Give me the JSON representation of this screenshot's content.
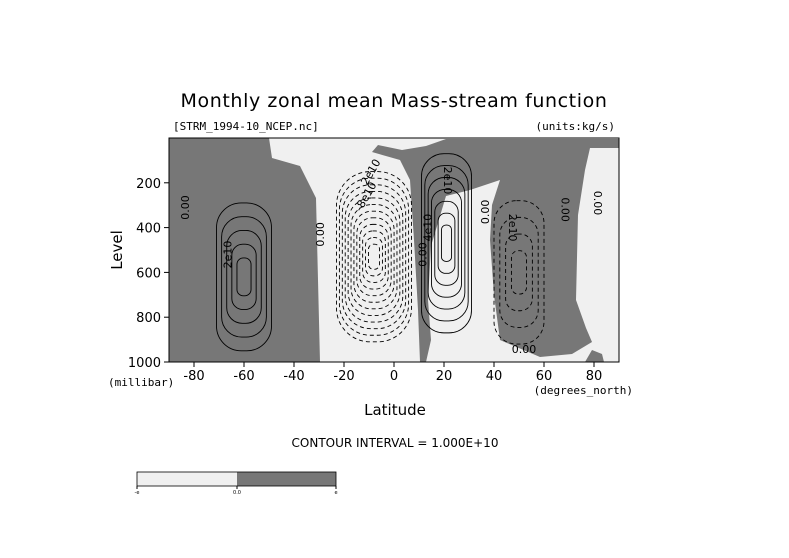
{
  "chart_data": {
    "type": "contour",
    "title": "Monthly zonal mean Mass-stream function",
    "file_label": "[STRM_1994-10_NCEP.nc]",
    "units_label": "(units:kg/s)",
    "xlabel": "Latitude",
    "ylabel": "Level",
    "x_unit_label": "(degrees_north)",
    "y_unit_label": "(millibar)",
    "xlim": [
      -90,
      90
    ],
    "ylim": [
      1000,
      0
    ],
    "x_ticks": [
      -80,
      -60,
      -40,
      -20,
      0,
      20,
      40,
      60,
      80
    ],
    "y_ticks": [
      200,
      400,
      600,
      800,
      1000
    ],
    "contour_interval_text": "CONTOUR INTERVAL = 1.000E+10",
    "contour_labels": [
      "0.00",
      "2e10",
      "0.00",
      "2e10",
      "-8e10",
      "0.00",
      "2e10",
      "4e10",
      "0.00",
      "2e10",
      "0.00",
      "0.00",
      "0.00"
    ],
    "colors": {
      "positive": "#777777",
      "negative": "#f0f0f0",
      "lines": "#000000"
    },
    "cells": [
      {
        "center": [
          -60,
          620
        ],
        "half_width": [
          11,
          330
        ],
        "levels": [
          1,
          2,
          3,
          4,
          5
        ],
        "sign": 1
      },
      {
        "center": [
          -8,
          530
        ],
        "half_width": [
          15,
          380
        ],
        "levels": [
          1,
          2,
          3,
          4,
          5,
          6,
          7,
          8,
          9,
          10,
          11,
          12
        ],
        "sign": -1
      },
      {
        "center": [
          21,
          470
        ],
        "half_width": [
          10,
          400
        ],
        "levels": [
          1,
          2,
          3,
          4,
          5,
          6,
          7
        ],
        "sign": 1
      },
      {
        "center": [
          50,
          600
        ],
        "half_width": [
          10,
          320
        ],
        "levels": [
          1,
          2,
          3,
          4
        ],
        "sign": -1
      }
    ],
    "legend": {
      "ticks": [
        "-e",
        "0.0",
        "e"
      ]
    }
  }
}
